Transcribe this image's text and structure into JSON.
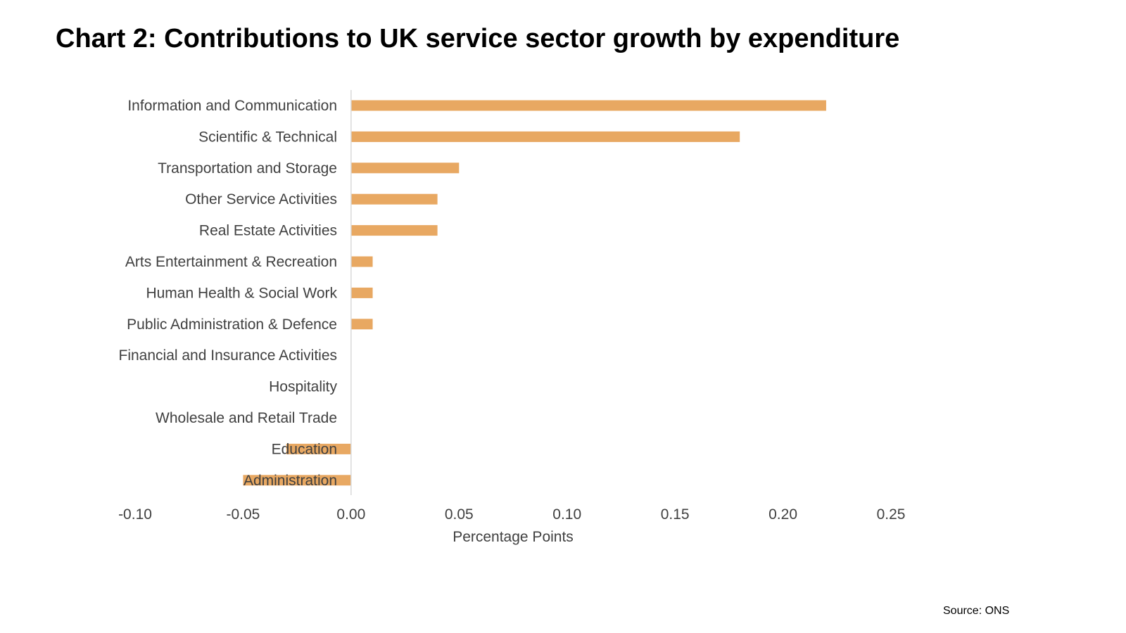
{
  "title": "Chart 2: Contributions to UK service sector growth by expenditure",
  "source": "Source: ONS",
  "colors": {
    "bar": "#E8A862",
    "axis": "#D9D9D9",
    "text": "#404040"
  },
  "chart_data": {
    "type": "bar",
    "orientation": "horizontal",
    "categories": [
      "Information and Communication",
      "Scientific & Technical",
      "Transportation and Storage",
      "Other Service Activities",
      "Real Estate Activities",
      "Arts Entertainment & Recreation",
      "Human Health & Social Work",
      "Public Administration & Defence",
      "Financial and Insurance Activities",
      "Hospitality",
      "Wholesale and Retail Trade",
      "Education",
      "Administration"
    ],
    "values": [
      0.22,
      0.18,
      0.05,
      0.04,
      0.04,
      0.01,
      0.01,
      0.01,
      0,
      0,
      0,
      -0.03,
      -0.05
    ],
    "xlabel": "Percentage Points",
    "ylabel": "",
    "xlim": [
      -0.1,
      0.25
    ],
    "xticks": [
      "-0.10",
      "-0.05",
      "0.00",
      "0.05",
      "0.10",
      "0.15",
      "0.20",
      "0.25"
    ],
    "grid": false,
    "legend": "none"
  }
}
